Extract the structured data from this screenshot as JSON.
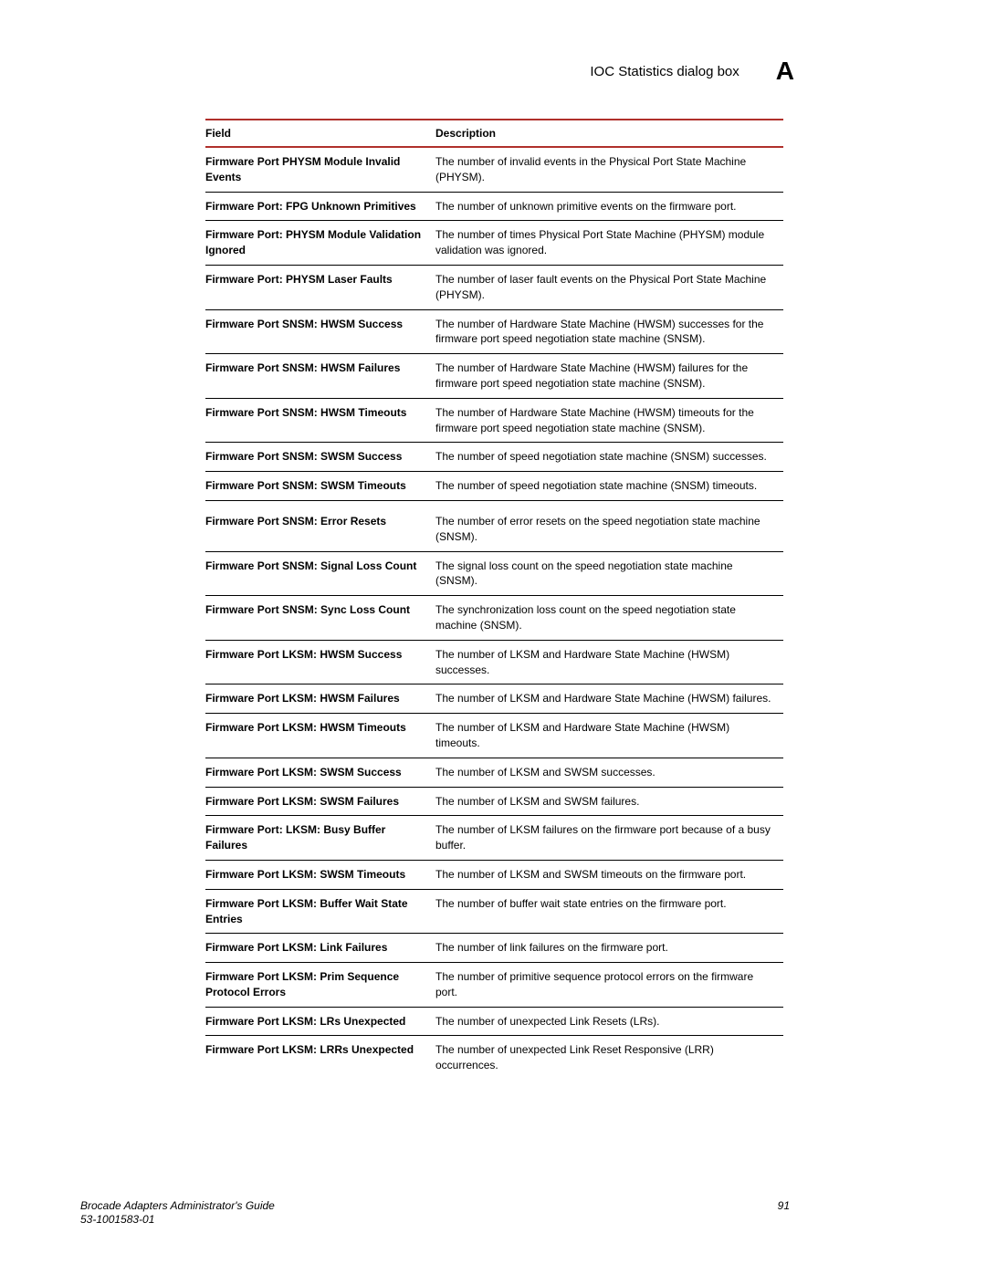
{
  "header": {
    "title": "IOC Statistics dialog box",
    "appendix_letter": "A"
  },
  "table": {
    "columns": [
      "Field",
      "Description"
    ],
    "rows": [
      {
        "field": "Firmware Port PHYSM Module Invalid Events",
        "description": "The number of invalid events in the Physical Port State Machine (PHYSM)."
      },
      {
        "field": "Firmware Port: FPG Unknown Primitives",
        "description": "The number of unknown primitive events on the firmware port."
      },
      {
        "field": "Firmware Port: PHYSM Module Validation Ignored",
        "description": "The number of times Physical Port State Machine (PHYSM) module validation was ignored."
      },
      {
        "field": "Firmware Port: PHYSM Laser Faults",
        "description": "The number of laser fault events on the Physical Port State Machine (PHYSM)."
      },
      {
        "field": "Firmware Port SNSM: HWSM Success",
        "description": "The number of Hardware State Machine (HWSM) successes for the firmware port speed negotiation state machine (SNSM)."
      },
      {
        "field": "Firmware Port SNSM: HWSM Failures",
        "description": "The number of Hardware State Machine (HWSM) failures for the firmware port speed negotiation state machine (SNSM)."
      },
      {
        "field": "Firmware Port SNSM: HWSM Timeouts",
        "description": "The number of Hardware State Machine (HWSM) timeouts for the firmware port speed negotiation state machine (SNSM)."
      },
      {
        "field": "Firmware Port SNSM: SWSM Success",
        "description": "The number of speed negotiation state machine (SNSM) successes."
      },
      {
        "field": "Firmware Port SNSM: SWSM Timeouts",
        "description": "The number of speed negotiation state machine (SNSM) timeouts."
      },
      {
        "field": "Firmware Port SNSM: Error Resets",
        "description": "The number of error resets on the speed negotiation state machine (SNSM).",
        "spacer": true
      },
      {
        "field": "Firmware Port SNSM: Signal Loss Count",
        "description": "The signal loss count on the speed negotiation state machine (SNSM)."
      },
      {
        "field": "Firmware Port SNSM: Sync Loss Count",
        "description": "The synchronization loss count on the speed negotiation state machine (SNSM)."
      },
      {
        "field": "Firmware Port LKSM: HWSM Success",
        "description": "The number of LKSM and Hardware State Machine (HWSM) successes."
      },
      {
        "field": "Firmware Port LKSM: HWSM Failures",
        "description": "The number of LKSM and Hardware State Machine (HWSM) failures."
      },
      {
        "field": "Firmware Port LKSM: HWSM Timeouts",
        "description": "The number of LKSM and Hardware State Machine (HWSM) timeouts."
      },
      {
        "field": "Firmware Port LKSM: SWSM Success",
        "description": "The number of LKSM and SWSM successes."
      },
      {
        "field": "Firmware Port LKSM: SWSM Failures",
        "description": "The number of LKSM and SWSM failures."
      },
      {
        "field": "Firmware Port: LKSM: Busy Buffer Failures",
        "description": "The number of LKSM failures on the firmware port because of a busy buffer."
      },
      {
        "field": "Firmware Port LKSM: SWSM Timeouts",
        "description": "The number of LKSM and SWSM timeouts on the firmware port."
      },
      {
        "field": "Firmware Port LKSM: Buffer Wait State Entries",
        "description": "The number of buffer wait state entries on the firmware port."
      },
      {
        "field": "Firmware Port LKSM: Link Failures",
        "description": "The number of link failures on the firmware port."
      },
      {
        "field": "Firmware Port LKSM: Prim Sequence Protocol Errors",
        "description": "The number of primitive sequence protocol errors on the firmware port."
      },
      {
        "field": "Firmware Port LKSM: LRs Unexpected",
        "description": "The number of unexpected Link Resets (LRs)."
      },
      {
        "field": "Firmware Port LKSM: LRRs Unexpected",
        "description": "The number of unexpected Link Reset Responsive (LRR) occurrences."
      }
    ]
  },
  "footer": {
    "doc_title": "Brocade Adapters Administrator's Guide",
    "doc_number": "53-1001583-01",
    "page_number": "91"
  }
}
